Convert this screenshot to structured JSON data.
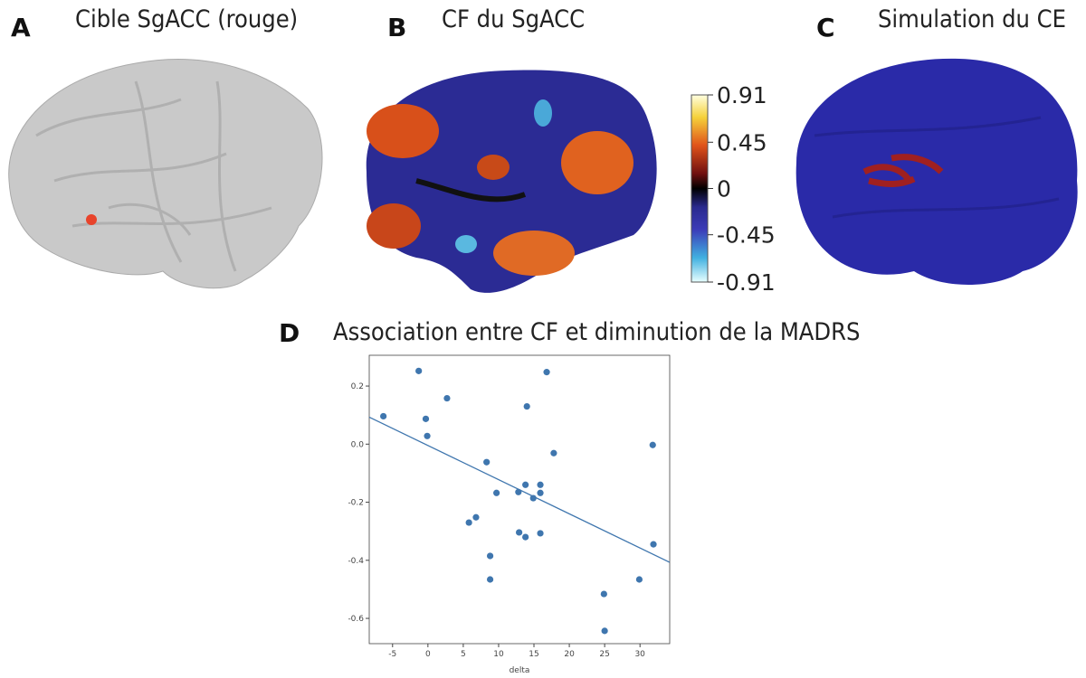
{
  "panels": [
    {
      "letter": "A",
      "title": "Cible SgACC (rouge)"
    },
    {
      "letter": "B",
      "title": "CF du SgACC"
    },
    {
      "letter": "C",
      "title": "Simulation du CE"
    }
  ],
  "colorbar": {
    "lim": [
      -0.91,
      0.91
    ],
    "ticks": [
      0.91,
      0.45,
      0,
      -0.45,
      -0.91
    ]
  },
  "chart_data": {
    "type": "scatter",
    "panel": "D",
    "title": "Association entre CF et diminution de la MADRS",
    "x_label": "delta",
    "xlim": [
      -8.3,
      34.2
    ],
    "ylim": [
      -0.687,
      0.306
    ],
    "xticks": [
      -5,
      0,
      5,
      10,
      15,
      20,
      25,
      30
    ],
    "yticks": [
      0.2,
      {
        "value": 0,
        "label": "0.0"
      },
      -0.2,
      -0.4,
      -0.6
    ],
    "series": [
      {
        "color": "#3f76ae",
        "x": [
          -6.3,
          -1.3,
          -0.3,
          -0.1,
          2.7,
          8.3,
          9.7,
          5.8,
          6.8,
          8.8,
          8.8,
          12.8,
          12.9,
          13.8,
          13.8,
          14.0,
          14.9,
          15.9,
          15.9,
          15.9,
          16.8,
          17.8,
          24.9,
          25.0,
          29.9,
          31.8,
          31.9
        ],
        "values": [
          0.096,
          0.252,
          0.087,
          0.028,
          0.158,
          -0.062,
          -0.168,
          -0.27,
          -0.252,
          -0.385,
          -0.466,
          -0.165,
          -0.304,
          -0.14,
          -0.32,
          0.13,
          -0.186,
          -0.14,
          -0.168,
          -0.307,
          0.248,
          -0.031,
          -0.516,
          -0.643,
          -0.466,
          -0.003,
          -0.345
        ]
      }
    ],
    "trend": {
      "color": "#3f76ae",
      "x": [
        -8.3,
        34.2
      ],
      "y": [
        0.093,
        -0.407
      ]
    }
  }
}
